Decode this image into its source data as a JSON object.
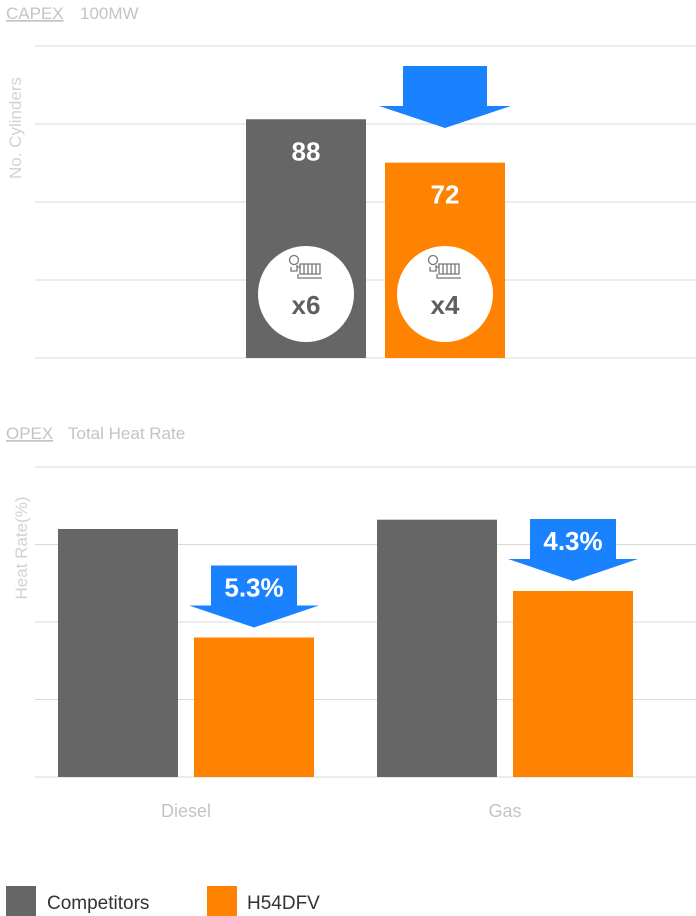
{
  "colors": {
    "competitors": "#666666",
    "h54dfv": "#ff8200",
    "arrow": "#1a82ff"
  },
  "chart_data": [
    {
      "type": "bar",
      "section_key": "CAPEX",
      "section_title": "100MW",
      "ylabel": "No. Cylinders",
      "ylim": [
        0,
        115
      ],
      "grid": true,
      "series": [
        {
          "name": "Competitors",
          "values": [
            88
          ],
          "data_label": "88",
          "units_label": "x6"
        },
        {
          "name": "H54DFV",
          "values": [
            72
          ],
          "data_label": "72",
          "units_label": "x4"
        }
      ],
      "icon": "engine-icon",
      "annotation": {
        "type": "down-arrow",
        "series": "H54DFV"
      }
    },
    {
      "type": "bar",
      "section_key": "OPEX",
      "section_title": "Total Heat Rate",
      "ylabel": "Heat Rate(%)",
      "categories": [
        "Diesel",
        "Gas"
      ],
      "ylim": [
        0,
        100
      ],
      "grid": true,
      "series": [
        {
          "name": "Competitors",
          "values": [
            80,
            83
          ]
        },
        {
          "name": "H54DFV",
          "values": [
            45,
            60
          ]
        }
      ],
      "annotations": [
        {
          "category": "Diesel",
          "text": "5.3%",
          "type": "down-arrow"
        },
        {
          "category": "Gas",
          "text": "4.3%",
          "type": "down-arrow"
        }
      ]
    }
  ],
  "legend": [
    {
      "label": "Competitors",
      "color": "#666666"
    },
    {
      "label": "H54DFV",
      "color": "#ff8200"
    }
  ]
}
